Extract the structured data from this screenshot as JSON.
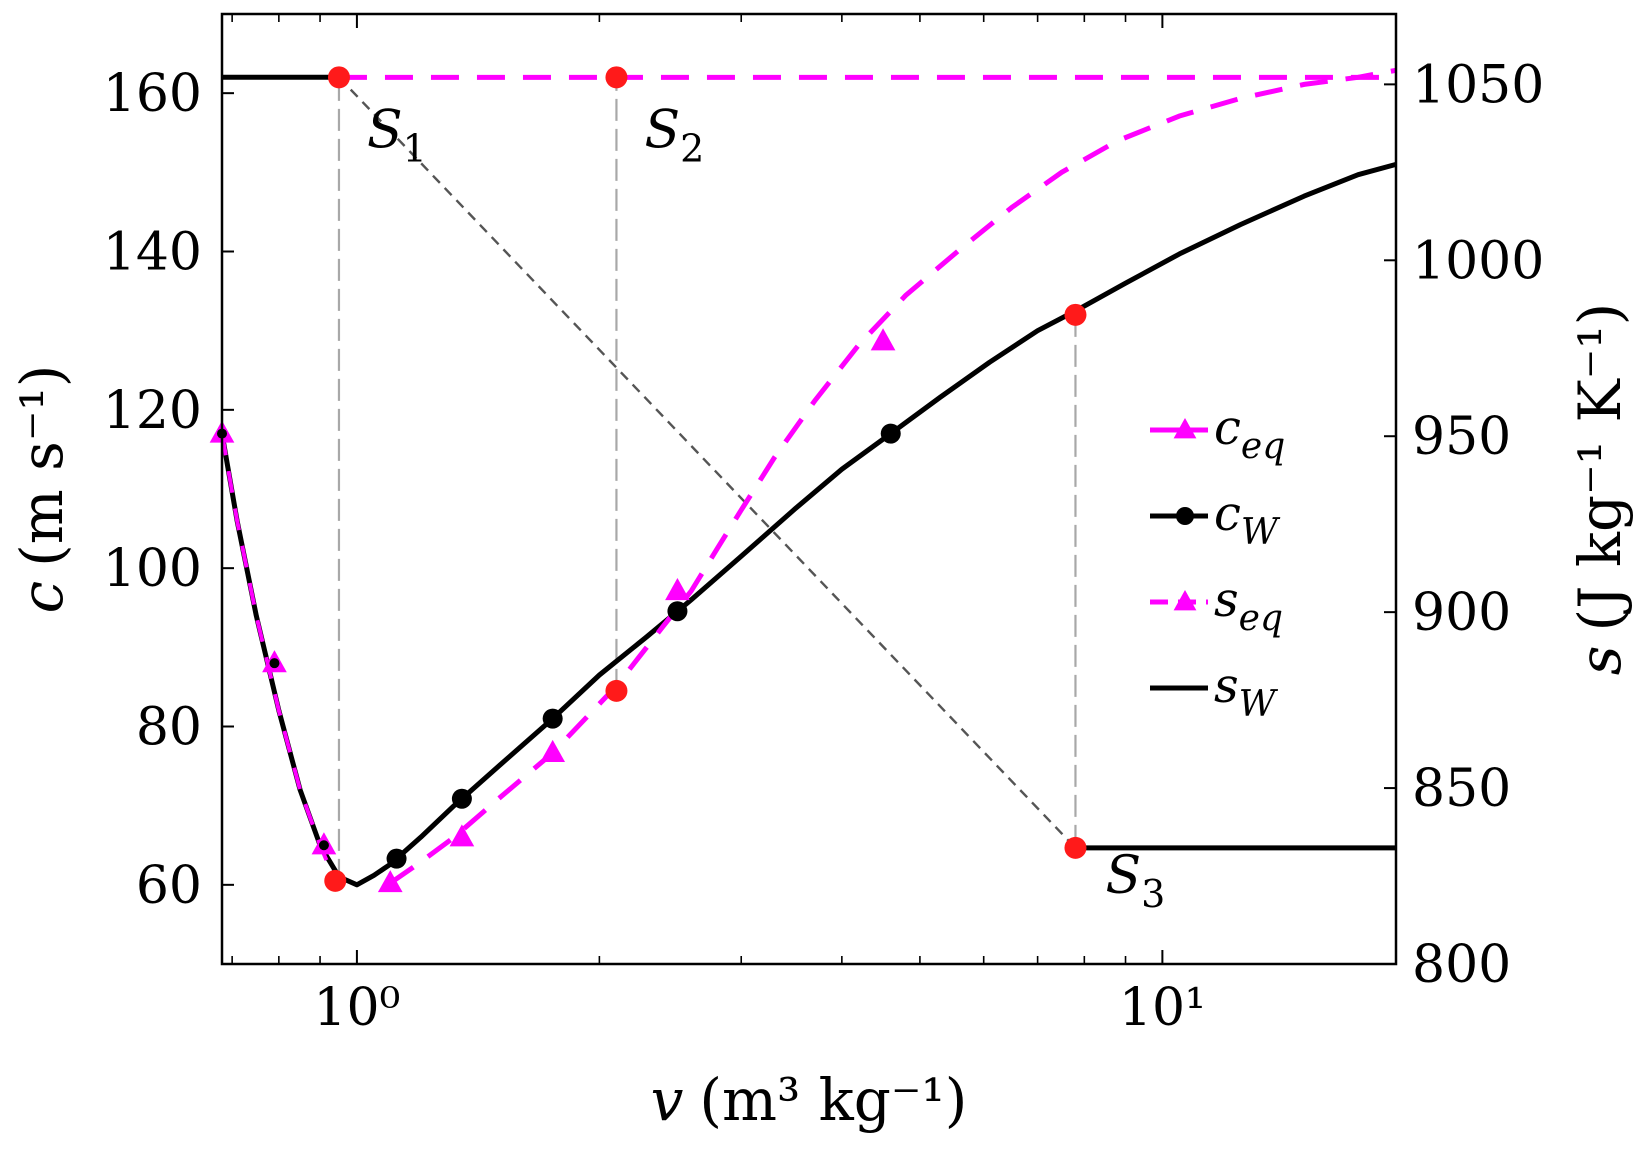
{
  "chart_data": {
    "type": "line",
    "xscale": "log",
    "xlabel": {
      "main": "v",
      "units": "(m³ kg⁻¹)"
    },
    "ylabel_left": {
      "main": "c",
      "units": "(m s⁻¹)"
    },
    "ylabel_right": {
      "main": "s",
      "units": "(J kg⁻¹ K⁻¹)"
    },
    "xlim": [
      0.68,
      19.5
    ],
    "ylim_left": [
      50,
      170
    ],
    "ylim_right": [
      800,
      1070
    ],
    "x_ticks": [
      {
        "value": 1,
        "label": "10⁰"
      },
      {
        "value": 10,
        "label": "10¹"
      }
    ],
    "y_left_ticks": [
      {
        "value": 60,
        "label": "60"
      },
      {
        "value": 80,
        "label": "80"
      },
      {
        "value": 100,
        "label": "100"
      },
      {
        "value": 120,
        "label": "120"
      },
      {
        "value": 140,
        "label": "140"
      },
      {
        "value": 160,
        "label": "160"
      }
    ],
    "y_right_ticks": [
      {
        "value": 800,
        "label": "800"
      },
      {
        "value": 850,
        "label": "850"
      },
      {
        "value": 900,
        "label": "900"
      },
      {
        "value": 950,
        "label": "950"
      },
      {
        "value": 1000,
        "label": "1000"
      },
      {
        "value": 1050,
        "label": "1050"
      }
    ],
    "series": [
      {
        "name": "c_eq",
        "label_main": "c",
        "label_sub": "eq",
        "axis": "left",
        "color": "#ff00ff",
        "style": "solid",
        "marker": "triangle",
        "x": [
          0.68,
          0.71,
          0.75,
          0.8,
          0.85,
          0.9,
          0.94
        ],
        "y": [
          117,
          106,
          94,
          82,
          72,
          65,
          60.5
        ],
        "marker_x": [
          0.68,
          0.79,
          0.91
        ],
        "marker_y": [
          117,
          88,
          65
        ]
      },
      {
        "name": "c_W",
        "label_main": "c",
        "label_sub": "W",
        "axis": "left",
        "color": "#000000",
        "style": "solid",
        "marker": "circle",
        "x": [
          0.68,
          0.71,
          0.75,
          0.8,
          0.85,
          0.9,
          0.95,
          1.0,
          1.05,
          1.1,
          1.2,
          1.32,
          1.5,
          1.75,
          2.0,
          2.3,
          2.6,
          3.0,
          3.5,
          4.0,
          4.6,
          5.3,
          6.1,
          7.0,
          7.8,
          9.0,
          10.5,
          12.5,
          15.0,
          17.5,
          19.5
        ],
        "y": [
          117,
          106,
          94,
          82,
          72,
          65,
          61,
          60,
          61.2,
          62.6,
          66,
          70,
          75,
          81,
          86.5,
          91.5,
          96,
          101.5,
          107.5,
          112.5,
          117,
          121.6,
          126,
          130,
          132.5,
          136,
          139.7,
          143.4,
          147,
          149.7,
          151
        ]
      },
      {
        "name": "s_eq",
        "label_main": "s",
        "label_sub": "eq",
        "axis": "right",
        "color": "#ff00ff",
        "style": "dashed",
        "marker": "triangle",
        "x": [
          1.1,
          1.2,
          1.32,
          1.5,
          1.75,
          2.1,
          2.4,
          2.6,
          2.8,
          3.0,
          3.3,
          3.7,
          4.2,
          4.8,
          5.6,
          6.5,
          7.5,
          8.8,
          10.5,
          12.5,
          15.0,
          17.5,
          19.5
        ],
        "y": [
          823,
          829,
          836,
          847,
          860,
          879,
          896,
          906,
          918,
          929,
          944,
          960,
          976,
          990,
          1003,
          1015,
          1025,
          1034,
          1041,
          1046,
          1050,
          1052,
          1054
        ],
        "marker_x": [
          1.1,
          1.35,
          1.75,
          2.5,
          4.5
        ],
        "marker_y": [
          823,
          836,
          860,
          906,
          977
        ]
      },
      {
        "name": "s_W",
        "label_main": "s",
        "label_sub": "W",
        "axis": "right",
        "color": "#000000",
        "style": "solid",
        "marker": "none",
        "segments": [
          {
            "x": [
              0.68,
              0.95
            ],
            "y": [
              1052,
              1052
            ]
          },
          {
            "x": [
              7.8,
              19.5
            ],
            "y": [
              833,
              833
            ]
          }
        ]
      }
    ],
    "points": [
      {
        "name": "S1",
        "label_main": "S",
        "label_sub": "1",
        "x": 0.95,
        "y_right": 1052
      },
      {
        "name": "S2",
        "label_main": "S",
        "label_sub": "2",
        "x": 2.1,
        "y_right": 1052
      },
      {
        "name": "S3",
        "label_main": "S",
        "label_sub": "3",
        "x": 7.8,
        "y_right": 833
      }
    ],
    "extra_red_points": [
      {
        "x": 0.94,
        "y_left": 60.5
      },
      {
        "x": 2.1,
        "y_left": 84.5
      },
      {
        "x": 7.8,
        "y_left": 132
      }
    ],
    "rayleigh_line": {
      "x": [
        0.95,
        7.8
      ],
      "y_right": [
        1052,
        833
      ]
    },
    "verticals": [
      {
        "x": 0.95,
        "y_left_from": 60.5,
        "y_right_to": 1052
      },
      {
        "x": 2.1,
        "y_left_from": 84.5,
        "y_right_to": 1052
      },
      {
        "x": 7.8,
        "y_left_from": 132,
        "y_right_to": 833
      }
    ],
    "legend_position": "right-middle"
  }
}
